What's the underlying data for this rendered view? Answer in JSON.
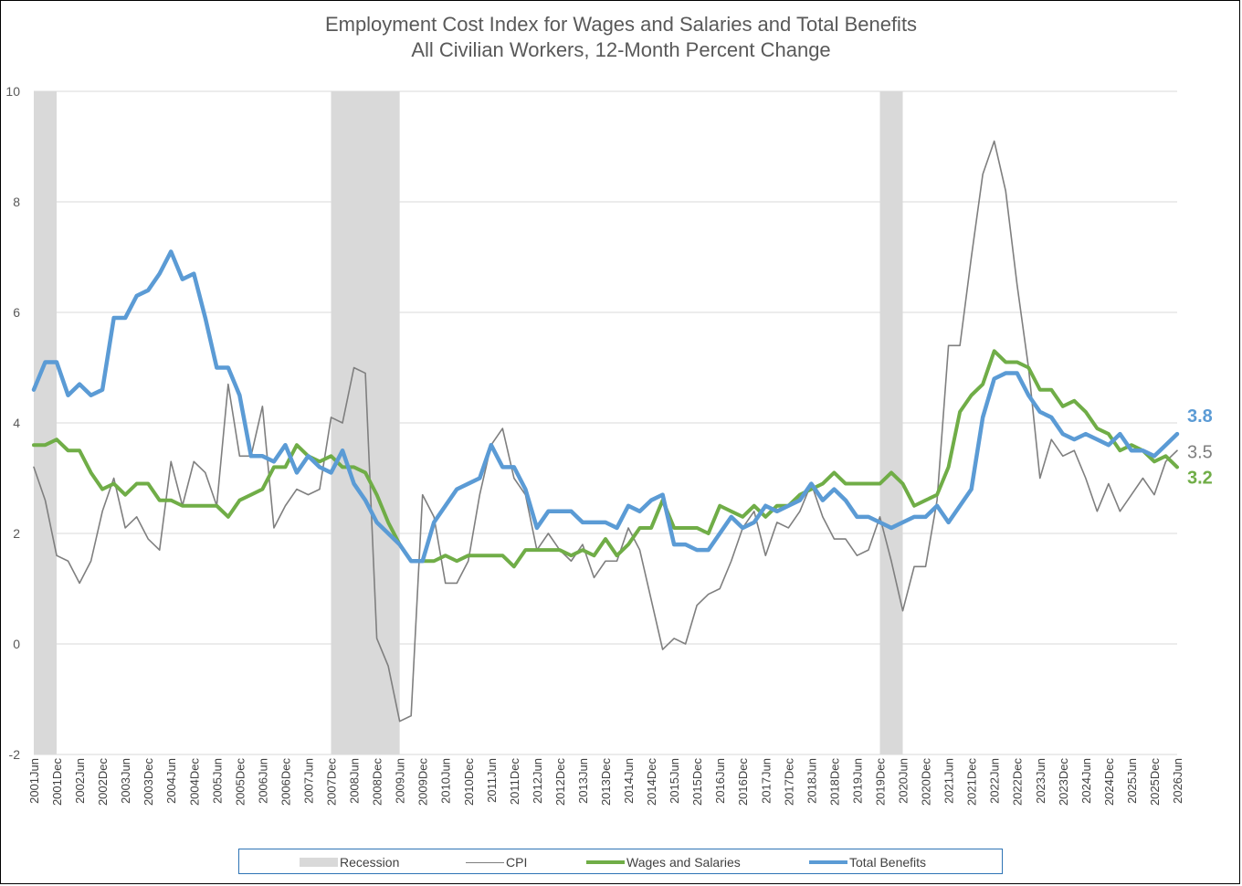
{
  "chart_data": {
    "type": "line",
    "title": "Employment Cost Index for Wages and Salaries and Total Benefits",
    "subtitle": "All Civilian Workers, 12-Month Percent Change",
    "ylim": [
      -2,
      10
    ],
    "yticks": [
      -2,
      0,
      2,
      4,
      6,
      8,
      10
    ],
    "x_tick_labels": [
      "2001Jun",
      "2001Dec",
      "2002Jun",
      "2002Dec",
      "2003Jun",
      "2003Dec",
      "2004Jun",
      "2004Dec",
      "2005Jun",
      "2005Dec",
      "2006Jun",
      "2006Dec",
      "2007Jun",
      "2007Dec",
      "2008Jun",
      "2008Dec",
      "2009Jun",
      "2009Dec",
      "2010Jun",
      "2010Dec",
      "2011Jun",
      "2011Dec",
      "2012Jun",
      "2012Dec",
      "2013Jun",
      "2013Dec",
      "2014Jun",
      "2014Dec",
      "2015Jun",
      "2015Dec",
      "2016Jun",
      "2016Dec",
      "2017Jun",
      "2017Dec",
      "2018Jun",
      "2018Dec",
      "2019Jun",
      "2019Dec",
      "2020Jun",
      "2020Dec",
      "2021Jun",
      "2021Dec",
      "2022Jun",
      "2022Dec",
      "2023Jun",
      "2023Dec",
      "2024Jun",
      "2024Dec",
      "2025Jun",
      "2025Dec",
      "2026Jun"
    ],
    "grid": "horizontal",
    "recessions": [
      {
        "start": "2001Jun",
        "end": "2001Dec"
      },
      {
        "start": "2007Dec",
        "end": "2009Jun"
      },
      {
        "start": "2019Dec",
        "end": "2020Jun"
      }
    ],
    "series": [
      {
        "name": "CPI",
        "color": "#7f7f7f",
        "end_label": "3.5",
        "values": [
          3.2,
          2.6,
          1.6,
          1.5,
          1.1,
          1.5,
          2.4,
          3.0,
          2.1,
          2.3,
          1.9,
          1.7,
          3.3,
          2.5,
          3.3,
          3.1,
          2.5,
          4.7,
          3.4,
          3.4,
          4.3,
          2.1,
          2.5,
          2.8,
          2.7,
          2.8,
          4.1,
          4.0,
          5.0,
          4.9,
          0.1,
          -0.4,
          -1.4,
          -1.3,
          2.7,
          2.3,
          1.1,
          1.1,
          1.5,
          2.7,
          3.6,
          3.9,
          3.0,
          2.7,
          1.7,
          2.0,
          1.7,
          1.5,
          1.8,
          1.2,
          1.5,
          1.5,
          2.1,
          1.7,
          0.8,
          -0.1,
          0.1,
          0.0,
          0.7,
          0.9,
          1.0,
          1.5,
          2.1,
          2.4,
          1.6,
          2.2,
          2.1,
          2.4,
          2.9,
          2.3,
          1.9,
          1.9,
          1.6,
          1.7,
          2.3,
          1.5,
          0.6,
          1.4,
          1.4,
          2.6,
          5.4,
          5.4,
          7.0,
          8.5,
          9.1,
          8.2,
          6.5,
          5.0,
          3.0,
          3.7,
          3.4,
          3.5,
          3.0,
          2.4,
          2.9,
          2.4,
          2.7,
          3.0,
          2.7,
          3.3,
          3.5
        ]
      },
      {
        "name": "Wages and Salaries",
        "color": "#70ad47",
        "end_label": "3.2",
        "values": [
          3.6,
          3.6,
          3.7,
          3.5,
          3.5,
          3.1,
          2.8,
          2.9,
          2.7,
          2.9,
          2.9,
          2.6,
          2.6,
          2.5,
          2.5,
          2.5,
          2.5,
          2.3,
          2.6,
          2.7,
          2.8,
          3.2,
          3.2,
          3.6,
          3.4,
          3.3,
          3.4,
          3.2,
          3.2,
          3.1,
          2.7,
          2.2,
          1.8,
          1.5,
          1.5,
          1.5,
          1.6,
          1.5,
          1.6,
          1.6,
          1.6,
          1.6,
          1.4,
          1.7,
          1.7,
          1.7,
          1.7,
          1.6,
          1.7,
          1.6,
          1.9,
          1.6,
          1.8,
          2.1,
          2.1,
          2.6,
          2.1,
          2.1,
          2.1,
          2.0,
          2.5,
          2.4,
          2.3,
          2.5,
          2.3,
          2.5,
          2.5,
          2.7,
          2.8,
          2.9,
          3.1,
          2.9,
          2.9,
          2.9,
          2.9,
          3.1,
          2.9,
          2.5,
          2.6,
          2.7,
          3.2,
          4.2,
          4.5,
          4.7,
          5.3,
          5.1,
          5.1,
          5.0,
          4.6,
          4.6,
          4.3,
          4.4,
          4.2,
          3.9,
          3.8,
          3.5,
          3.6,
          3.5,
          3.3,
          3.4,
          3.2
        ]
      },
      {
        "name": "Total Benefits",
        "color": "#5b9bd5",
        "end_label": "3.8",
        "values": [
          4.6,
          5.1,
          5.1,
          4.5,
          4.7,
          4.5,
          4.6,
          5.9,
          5.9,
          6.3,
          6.4,
          6.7,
          7.1,
          6.6,
          6.7,
          5.9,
          5.0,
          5.0,
          4.5,
          3.4,
          3.4,
          3.3,
          3.6,
          3.1,
          3.4,
          3.2,
          3.1,
          3.5,
          2.9,
          2.6,
          2.2,
          2.0,
          1.8,
          1.5,
          1.5,
          2.2,
          2.5,
          2.8,
          2.9,
          3.0,
          3.6,
          3.2,
          3.2,
          2.8,
          2.1,
          2.4,
          2.4,
          2.4,
          2.2,
          2.2,
          2.2,
          2.1,
          2.5,
          2.4,
          2.6,
          2.7,
          1.8,
          1.8,
          1.7,
          1.7,
          2.0,
          2.3,
          2.1,
          2.2,
          2.5,
          2.4,
          2.5,
          2.6,
          2.9,
          2.6,
          2.8,
          2.6,
          2.3,
          2.3,
          2.2,
          2.1,
          2.2,
          2.3,
          2.3,
          2.5,
          2.2,
          2.5,
          2.8,
          4.1,
          4.8,
          4.9,
          4.9,
          4.5,
          4.2,
          4.1,
          3.8,
          3.7,
          3.8,
          3.7,
          3.6,
          3.8,
          3.5,
          3.5,
          3.4,
          3.6,
          3.8
        ]
      }
    ]
  },
  "legend": {
    "recession": "Recession",
    "cpi": "CPI",
    "wages": "Wages and Salaries",
    "benefits": "Total Benefits"
  }
}
